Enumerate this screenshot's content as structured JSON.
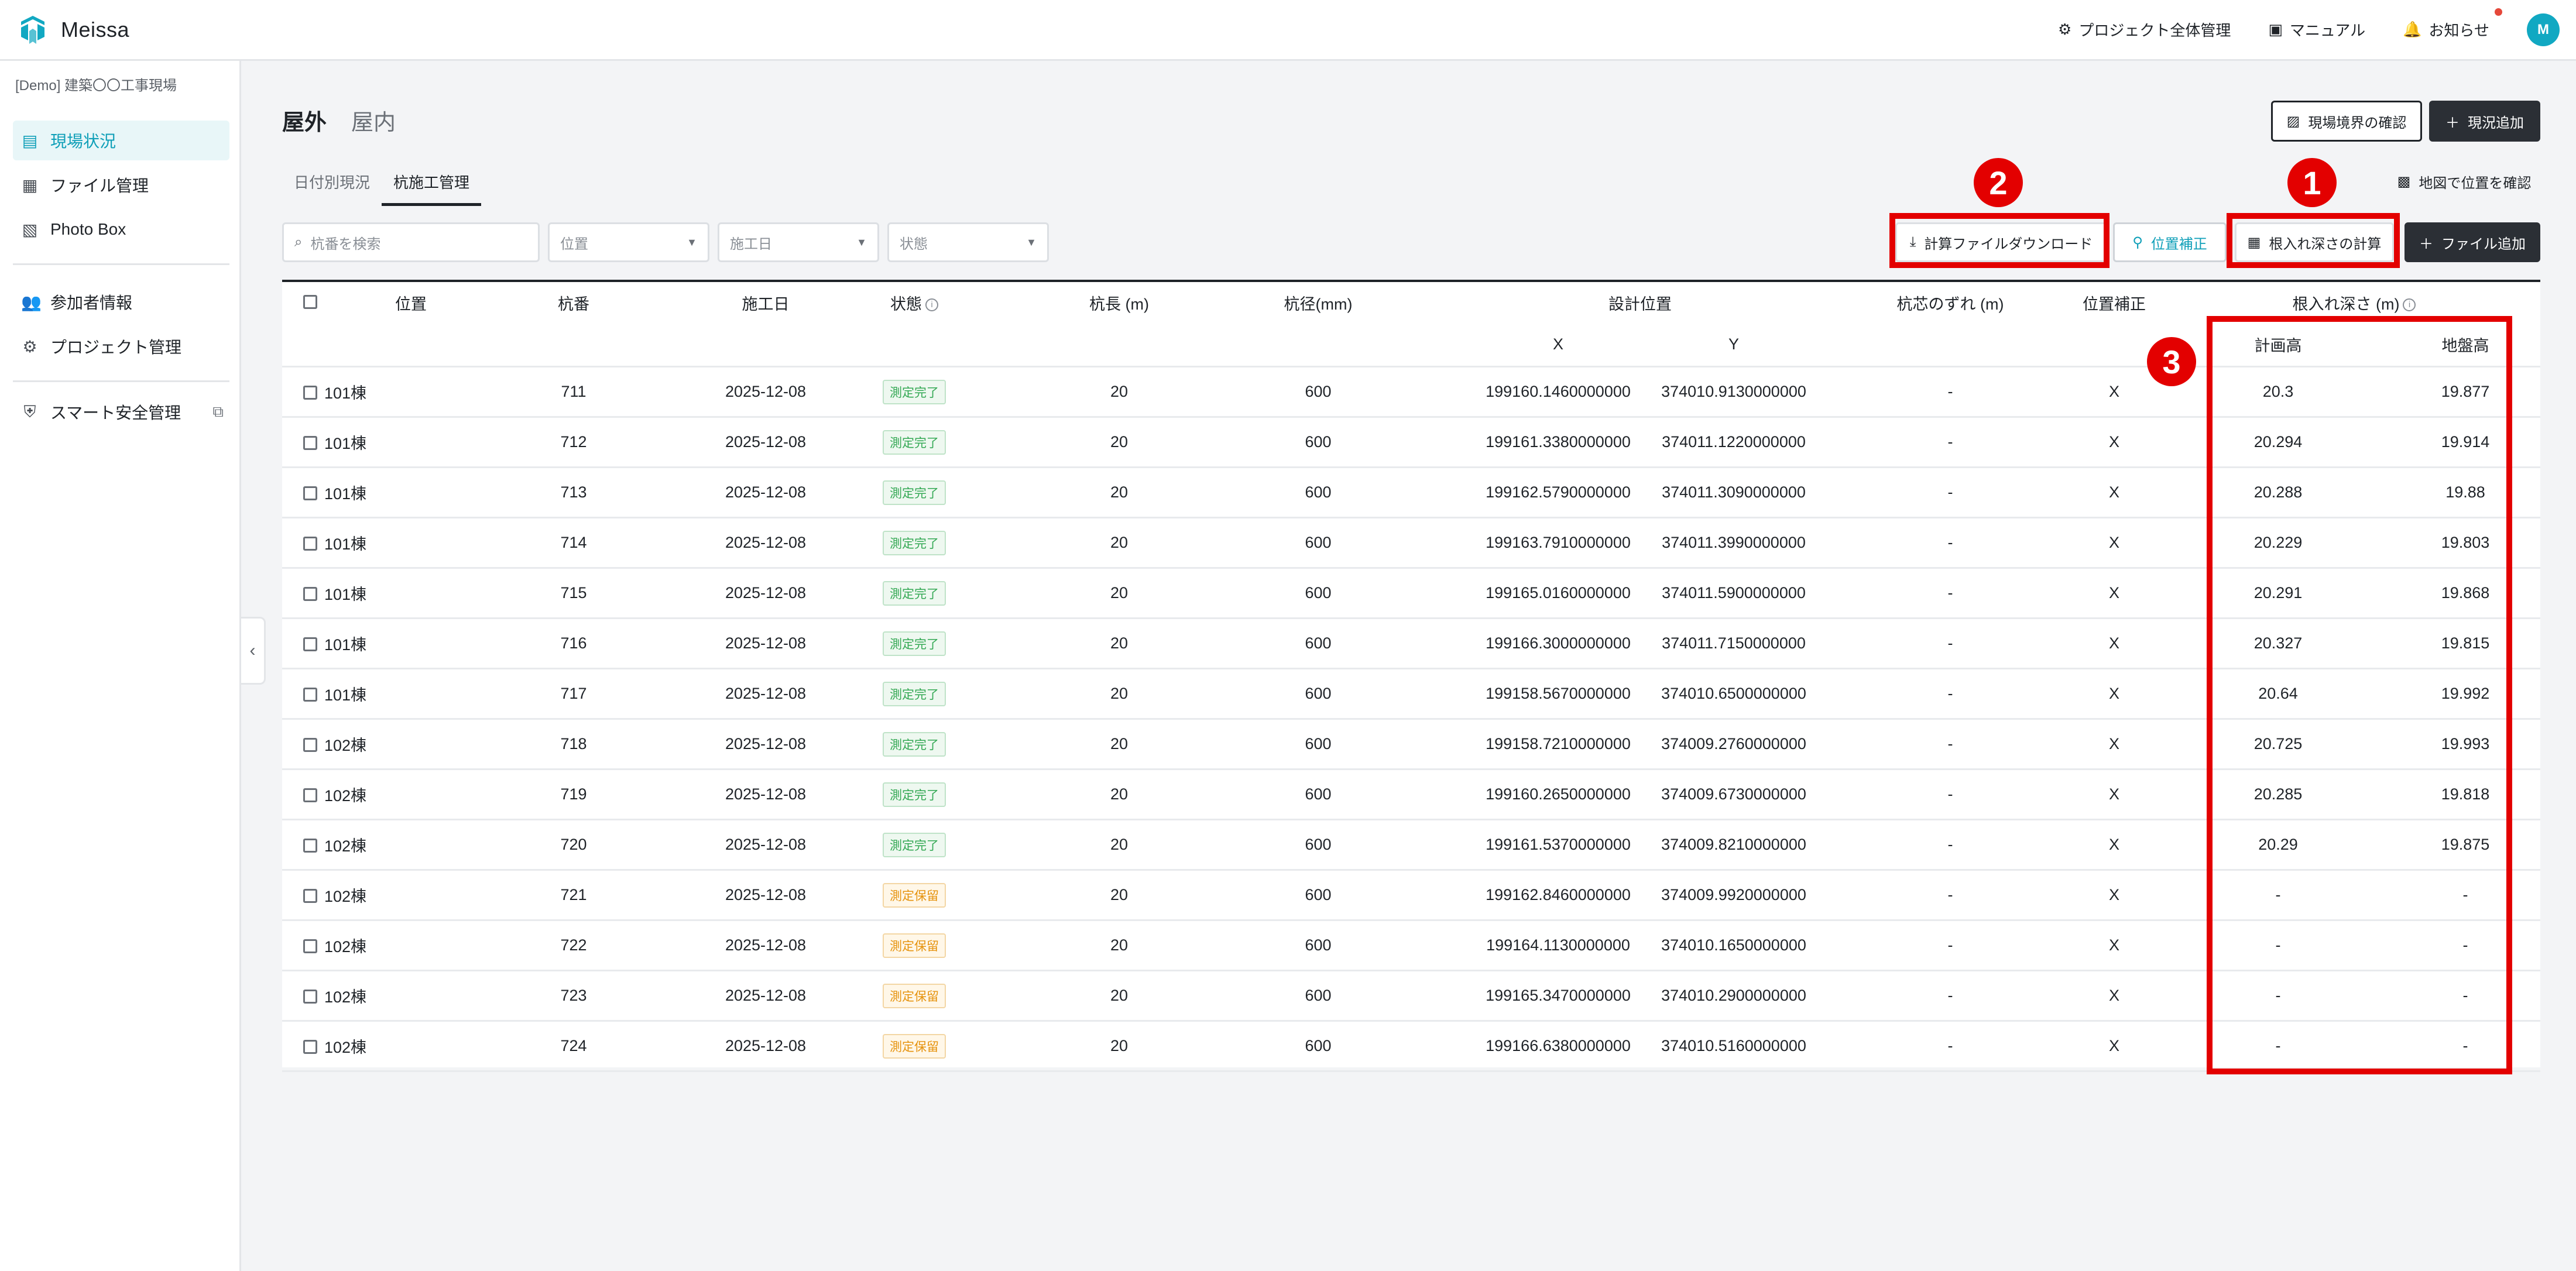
{
  "header": {
    "app_name": "Meissa",
    "links": [
      {
        "icon": "gear-icon",
        "label": "プロジェクト全体管理"
      },
      {
        "icon": "book-icon",
        "label": "マニュアル"
      },
      {
        "icon": "bell-icon",
        "label": "お知らせ"
      }
    ],
    "avatar_initial": "M"
  },
  "sidebar": {
    "project": "[Demo] 建築〇〇工事現場",
    "items": [
      {
        "label": "現場状況",
        "icon": "dashboard-icon",
        "active": true
      },
      {
        "label": "ファイル管理",
        "icon": "archive-icon"
      },
      {
        "label": "Photo Box",
        "icon": "photo-icon"
      },
      {
        "label": "参加者情報",
        "icon": "people-icon"
      },
      {
        "label": "プロジェクト管理",
        "icon": "gear-icon"
      },
      {
        "label": "スマート安全管理",
        "icon": "shield-icon",
        "external": true
      }
    ]
  },
  "main": {
    "tabs": [
      "屋外",
      "屋内"
    ],
    "subtabs": [
      "日付別現況",
      "杭施工管理"
    ],
    "buttons": {
      "site_boundary": "現場境界の確認",
      "add_status": "現況追加",
      "map_position": "地図で位置を確認",
      "download_calc": "計算ファイルダウンロード",
      "position_fix": "位置補正",
      "calc_depth": "根入れ深さの計算",
      "add_file": "ファイル追加"
    },
    "filters": {
      "search_placeholder": "杭番を検索",
      "position": "位置",
      "date": "施工日",
      "status": "状態"
    }
  },
  "table": {
    "headers": {
      "position": "位置",
      "pile_no": "杭番",
      "date": "施工日",
      "status": "状態",
      "length": "杭長 (m)",
      "diameter": "杭径(mm)",
      "design_pos": "設計位置",
      "x": "X",
      "y": "Y",
      "offset": "杭芯のずれ (m)",
      "pos_fix": "位置補正",
      "depth": "根入れ深さ (m)",
      "plan": "計画高",
      "ground": "地盤高"
    },
    "rows": [
      {
        "pos": "101棟",
        "no": "711",
        "date": "2025-12-08",
        "status": "測定完了",
        "state": "done",
        "len": "20",
        "dia": "600",
        "x": "199160.1460000000",
        "y": "374010.9130000000",
        "off": "-",
        "fix": "X",
        "plan": "20.3",
        "ground": "19.877"
      },
      {
        "pos": "101棟",
        "no": "712",
        "date": "2025-12-08",
        "status": "測定完了",
        "state": "done",
        "len": "20",
        "dia": "600",
        "x": "199161.3380000000",
        "y": "374011.1220000000",
        "off": "-",
        "fix": "X",
        "plan": "20.294",
        "ground": "19.914"
      },
      {
        "pos": "101棟",
        "no": "713",
        "date": "2025-12-08",
        "status": "測定完了",
        "state": "done",
        "len": "20",
        "dia": "600",
        "x": "199162.5790000000",
        "y": "374011.3090000000",
        "off": "-",
        "fix": "X",
        "plan": "20.288",
        "ground": "19.88"
      },
      {
        "pos": "101棟",
        "no": "714",
        "date": "2025-12-08",
        "status": "測定完了",
        "state": "done",
        "len": "20",
        "dia": "600",
        "x": "199163.7910000000",
        "y": "374011.3990000000",
        "off": "-",
        "fix": "X",
        "plan": "20.229",
        "ground": "19.803"
      },
      {
        "pos": "101棟",
        "no": "715",
        "date": "2025-12-08",
        "status": "測定完了",
        "state": "done",
        "len": "20",
        "dia": "600",
        "x": "199165.0160000000",
        "y": "374011.5900000000",
        "off": "-",
        "fix": "X",
        "plan": "20.291",
        "ground": "19.868"
      },
      {
        "pos": "101棟",
        "no": "716",
        "date": "2025-12-08",
        "status": "測定完了",
        "state": "done",
        "len": "20",
        "dia": "600",
        "x": "199166.3000000000",
        "y": "374011.7150000000",
        "off": "-",
        "fix": "X",
        "plan": "20.327",
        "ground": "19.815"
      },
      {
        "pos": "101棟",
        "no": "717",
        "date": "2025-12-08",
        "status": "測定完了",
        "state": "done",
        "len": "20",
        "dia": "600",
        "x": "199158.5670000000",
        "y": "374010.6500000000",
        "off": "-",
        "fix": "X",
        "plan": "20.64",
        "ground": "19.992"
      },
      {
        "pos": "102棟",
        "no": "718",
        "date": "2025-12-08",
        "status": "測定完了",
        "state": "done",
        "len": "20",
        "dia": "600",
        "x": "199158.7210000000",
        "y": "374009.2760000000",
        "off": "-",
        "fix": "X",
        "plan": "20.725",
        "ground": "19.993"
      },
      {
        "pos": "102棟",
        "no": "719",
        "date": "2025-12-08",
        "status": "測定完了",
        "state": "done",
        "len": "20",
        "dia": "600",
        "x": "199160.2650000000",
        "y": "374009.6730000000",
        "off": "-",
        "fix": "X",
        "plan": "20.285",
        "ground": "19.818"
      },
      {
        "pos": "102棟",
        "no": "720",
        "date": "2025-12-08",
        "status": "測定完了",
        "state": "done",
        "len": "20",
        "dia": "600",
        "x": "199161.5370000000",
        "y": "374009.8210000000",
        "off": "-",
        "fix": "X",
        "plan": "20.29",
        "ground": "19.875"
      },
      {
        "pos": "102棟",
        "no": "721",
        "date": "2025-12-08",
        "status": "測定保留",
        "state": "hold",
        "len": "20",
        "dia": "600",
        "x": "199162.8460000000",
        "y": "374009.9920000000",
        "off": "-",
        "fix": "X",
        "plan": "-",
        "ground": "-"
      },
      {
        "pos": "102棟",
        "no": "722",
        "date": "2025-12-08",
        "status": "測定保留",
        "state": "hold",
        "len": "20",
        "dia": "600",
        "x": "199164.1130000000",
        "y": "374010.1650000000",
        "off": "-",
        "fix": "X",
        "plan": "-",
        "ground": "-"
      },
      {
        "pos": "102棟",
        "no": "723",
        "date": "2025-12-08",
        "status": "測定保留",
        "state": "hold",
        "len": "20",
        "dia": "600",
        "x": "199165.3470000000",
        "y": "374010.2900000000",
        "off": "-",
        "fix": "X",
        "plan": "-",
        "ground": "-"
      },
      {
        "pos": "102棟",
        "no": "724",
        "date": "2025-12-08",
        "status": "測定保留",
        "state": "hold",
        "len": "20",
        "dia": "600",
        "x": "199166.6380000000",
        "y": "374010.5160000000",
        "off": "-",
        "fix": "X",
        "plan": "-",
        "ground": "-"
      }
    ]
  },
  "annotations": {
    "markers": [
      "1",
      "2",
      "3"
    ],
    "color": "#e30000"
  }
}
